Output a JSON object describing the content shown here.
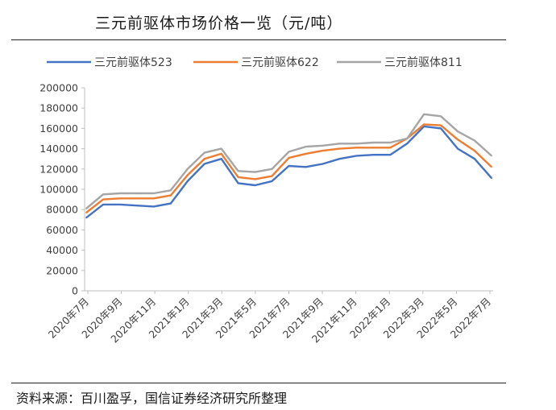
{
  "header": {
    "title": "三元前驱体市场价格一览（元/吨）"
  },
  "footer": {
    "source": "资料来源：百川盈孚，国信证券经济研究所整理"
  },
  "colors": {
    "s523": "#4472c4",
    "s622": "#ed7d31",
    "s811": "#a5a5a5"
  },
  "chart_data": {
    "type": "line",
    "title": "三元前驱体市场价格一览（元/吨）",
    "xlabel": "",
    "ylabel": "",
    "ylim": [
      0,
      200000
    ],
    "yticks": [
      "0",
      "20000",
      "40000",
      "60000",
      "80000",
      "100000",
      "120000",
      "140000",
      "160000",
      "180000",
      "200000"
    ],
    "xticks": [
      "2020年7月",
      "2020年9月",
      "2020年11月",
      "2021年1月",
      "2021年3月",
      "2021年5月",
      "2021年7月",
      "2021年9月",
      "2021年11月",
      "2022年1月",
      "2022年3月",
      "2022年5月",
      "2022年7月"
    ],
    "legend_position": "top",
    "grid": false,
    "x": [
      "2020-07",
      "2020-08",
      "2020-09",
      "2020-10",
      "2020-11",
      "2020-12",
      "2021-01",
      "2021-02",
      "2021-03",
      "2021-04",
      "2021-05",
      "2021-06",
      "2021-07",
      "2021-08",
      "2021-09",
      "2021-10",
      "2021-11",
      "2021-12",
      "2022-01",
      "2022-02",
      "2022-03",
      "2022-04",
      "2022-05",
      "2022-06",
      "2022-07"
    ],
    "series": [
      {
        "name": "三元前驱体523",
        "color": "#4472c4",
        "values": [
          72000,
          85000,
          85000,
          84000,
          83000,
          86000,
          108000,
          125000,
          130000,
          106000,
          104000,
          108000,
          123000,
          122000,
          125000,
          130000,
          133000,
          134000,
          134000,
          145000,
          162000,
          160000,
          140000,
          130000,
          111000
        ]
      },
      {
        "name": "三元前驱体622",
        "color": "#ed7d31",
        "values": [
          77000,
          90000,
          91000,
          91000,
          91000,
          94000,
          114000,
          130000,
          135000,
          112000,
          110000,
          113000,
          131000,
          135000,
          138000,
          140000,
          141000,
          141000,
          141000,
          150000,
          164000,
          163000,
          149000,
          138000,
          122000
        ]
      },
      {
        "name": "三元前驱体811",
        "color": "#a5a5a5",
        "values": [
          81000,
          95000,
          96000,
          96000,
          96000,
          99000,
          120000,
          136000,
          140000,
          118000,
          117000,
          120000,
          137000,
          142000,
          143000,
          145000,
          145000,
          146000,
          146000,
          150000,
          174000,
          172000,
          157000,
          148000,
          133000
        ]
      }
    ]
  }
}
